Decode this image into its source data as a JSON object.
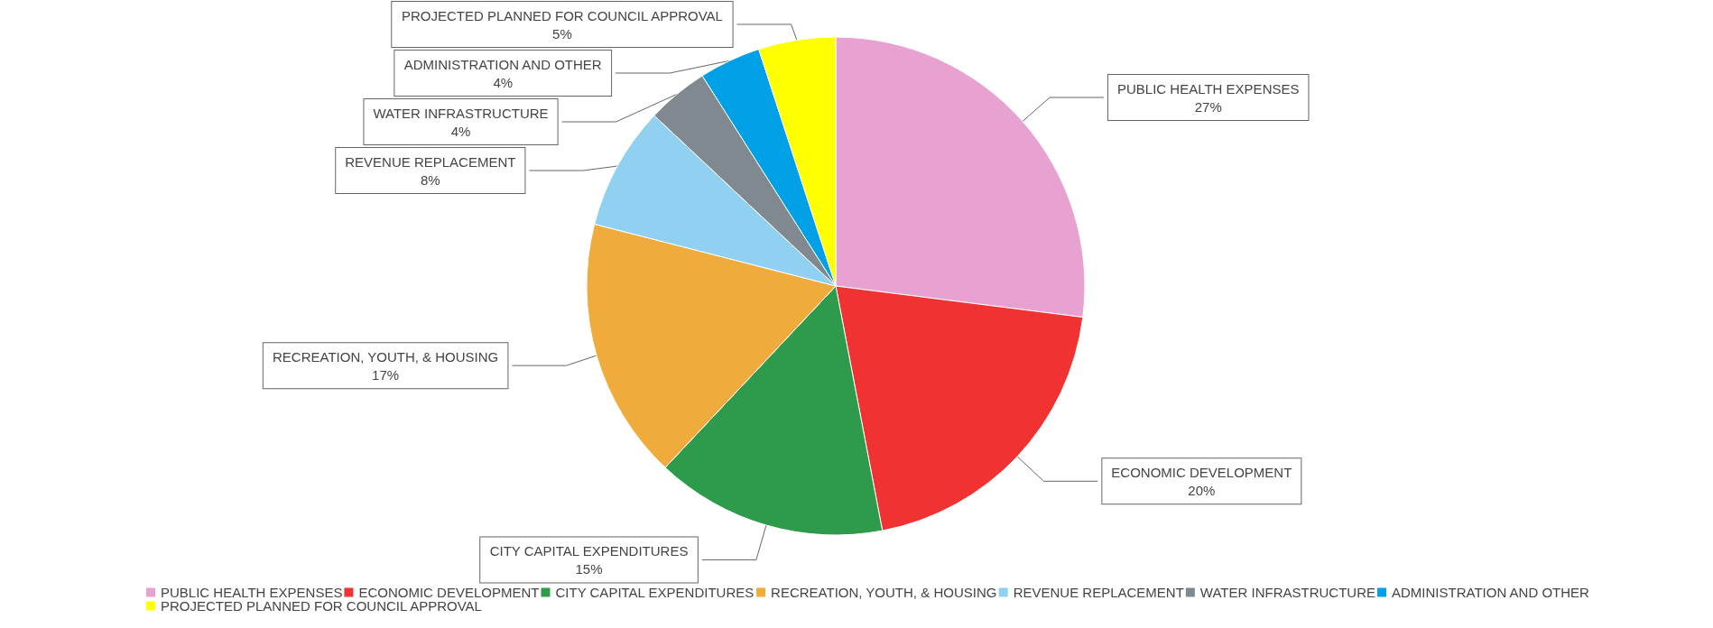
{
  "chart_data": {
    "type": "pie",
    "categories": [
      "PUBLIC HEALTH EXPENSES",
      "ECONOMIC DEVELOPMENT",
      "CITY CAPITAL EXPENDITURES",
      "RECREATION, YOUTH, & HOUSING",
      "REVENUE REPLACEMENT",
      "WATER INFRASTRUCTURE",
      "ADMINISTRATION AND OTHER",
      "PROJECTED PLANNED FOR COUNCIL APPROVAL"
    ],
    "values": [
      27,
      20,
      15,
      17,
      8,
      4,
      4,
      5
    ],
    "colors": [
      "#e8a2d2",
      "#f03232",
      "#2e9a4c",
      "#efab3c",
      "#90d0f0",
      "#808890",
      "#00a0e6",
      "#ffff00"
    ],
    "value_labels": [
      "27%",
      "20%",
      "15%",
      "17%",
      "8%",
      "4%",
      "4%",
      "5%"
    ],
    "legend": "bottom"
  }
}
